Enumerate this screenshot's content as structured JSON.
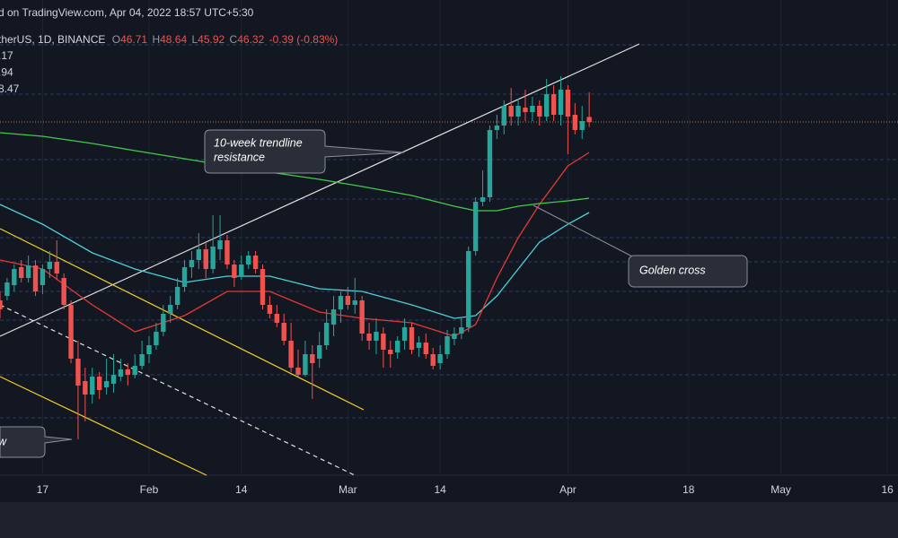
{
  "chart_data": {
    "type": "candlestick",
    "header": "d on TradingView.com, Apr 04, 2022 18:57 UTC+5:30",
    "symbol": "therUS, 1D, BINANCE",
    "ohlc_letters": [
      "O",
      "H",
      "L",
      "C"
    ],
    "change": "-0.39 (-0.83%)",
    "up_color": "#26a69a",
    "down_color": "#ef5350",
    "xlim": [
      0,
      126.5
    ],
    "ylim": [
      18.74,
      55.84
    ],
    "xticks": [
      {
        "value": 6,
        "label": "17"
      },
      {
        "value": 21,
        "label": "Feb"
      },
      {
        "value": 34,
        "label": "14"
      },
      {
        "value": 49,
        "label": "Mar"
      },
      {
        "value": 62,
        "label": "14"
      },
      {
        "value": 80,
        "label": "Apr"
      },
      {
        "value": 97,
        "label": "18"
      },
      {
        "value": 110,
        "label": "May"
      },
      {
        "value": 125,
        "label": "16"
      }
    ],
    "x": [
      0,
      1,
      2,
      3,
      4,
      5,
      6,
      7,
      8,
      9,
      10,
      11,
      12,
      13,
      14,
      15,
      16,
      17,
      18,
      19,
      20,
      21,
      22,
      23,
      24,
      25,
      26,
      27,
      28,
      29,
      30,
      31,
      32,
      33,
      34,
      35,
      36,
      37,
      38,
      39,
      40,
      41,
      42,
      43,
      44,
      45,
      46,
      47,
      48,
      49,
      50,
      51,
      52,
      53,
      54,
      55,
      56,
      57,
      58,
      59,
      60,
      61,
      62,
      63,
      64,
      65,
      66,
      67,
      68,
      69,
      70,
      71,
      72,
      73,
      74,
      75,
      76,
      77,
      78,
      79,
      80,
      81,
      82,
      83
    ],
    "candles": [
      [
        32.39,
        33.09,
        30.99,
        31.69
      ],
      [
        32.74,
        34.14,
        32.39,
        33.79
      ],
      [
        33.58,
        35.19,
        33.09,
        34.84
      ],
      [
        34.98,
        35.54,
        33.79,
        34.14
      ],
      [
        34.14,
        35.89,
        33.79,
        35.12
      ],
      [
        35.12,
        35.54,
        32.74,
        33.09
      ],
      [
        33.58,
        35.19,
        32.88,
        34.84
      ],
      [
        34.84,
        36.24,
        34.14,
        35.4
      ],
      [
        35.4,
        37.08,
        34.0,
        34.49
      ],
      [
        34.14,
        34.49,
        31.69,
        32.04
      ],
      [
        32.04,
        32.39,
        27.49,
        27.84
      ],
      [
        27.84,
        29.24,
        21.54,
        25.74
      ],
      [
        26.09,
        27.14,
        22.94,
        25.04
      ],
      [
        25.04,
        27.14,
        24.34,
        26.44
      ],
      [
        26.44,
        26.79,
        24.69,
        25.39
      ],
      [
        25.6,
        27.84,
        25.04,
        26.09
      ],
      [
        25.88,
        28.19,
        25.18,
        26.58
      ],
      [
        26.44,
        27.84,
        26.09,
        27.0
      ],
      [
        27.0,
        27.49,
        25.74,
        26.58
      ],
      [
        26.58,
        28.19,
        26.3,
        27.28
      ],
      [
        27.28,
        29.24,
        27.0,
        28.19
      ],
      [
        28.19,
        29.59,
        27.49,
        28.89
      ],
      [
        28.89,
        30.64,
        28.54,
        29.94
      ],
      [
        29.94,
        32.04,
        29.59,
        31.34
      ],
      [
        31.34,
        32.74,
        30.64,
        32.04
      ],
      [
        32.04,
        34.14,
        31.69,
        33.44
      ],
      [
        33.44,
        35.54,
        33.09,
        34.98
      ],
      [
        34.98,
        36.24,
        34.14,
        35.54
      ],
      [
        35.54,
        37.64,
        34.84,
        36.38
      ],
      [
        36.38,
        36.94,
        34.14,
        34.84
      ],
      [
        34.84,
        39.04,
        34.49,
        36.59
      ],
      [
        36.38,
        39.04,
        35.54,
        37.08
      ],
      [
        37.08,
        37.5,
        34.84,
        35.19
      ],
      [
        35.19,
        35.54,
        33.44,
        34.14
      ],
      [
        34.28,
        35.89,
        34.0,
        35.19
      ],
      [
        35.19,
        36.24,
        34.84,
        35.89
      ],
      [
        35.89,
        36.24,
        34.49,
        34.84
      ],
      [
        34.84,
        35.19,
        31.69,
        32.04
      ],
      [
        32.04,
        32.74,
        30.99,
        31.34
      ],
      [
        31.34,
        32.04,
        30.29,
        30.64
      ],
      [
        30.64,
        31.34,
        28.89,
        29.24
      ],
      [
        29.24,
        30.64,
        26.79,
        27.14
      ],
      [
        27.14,
        28.54,
        26.44,
        26.58
      ],
      [
        26.58,
        29.24,
        26.44,
        28.19
      ],
      [
        28.19,
        28.89,
        24.69,
        27.49
      ],
      [
        27.84,
        29.94,
        27.14,
        28.89
      ],
      [
        28.89,
        31.69,
        28.54,
        30.64
      ],
      [
        30.5,
        32.74,
        29.59,
        31.69
      ],
      [
        31.69,
        33.09,
        30.64,
        32.74
      ],
      [
        32.74,
        33.44,
        31.69,
        32.04
      ],
      [
        32.04,
        34.14,
        31.34,
        32.39
      ],
      [
        32.39,
        32.74,
        29.24,
        29.8
      ],
      [
        29.8,
        30.64,
        28.54,
        29.24
      ],
      [
        29.24,
        30.99,
        28.19,
        29.94
      ],
      [
        29.8,
        30.29,
        27.14,
        28.54
      ],
      [
        28.54,
        29.24,
        27.14,
        28.19
      ],
      [
        28.33,
        29.59,
        27.84,
        29.24
      ],
      [
        29.24,
        30.99,
        28.54,
        30.29
      ],
      [
        30.29,
        30.64,
        28.19,
        28.54
      ],
      [
        28.68,
        29.59,
        27.98,
        29.1
      ],
      [
        29.1,
        29.8,
        27.84,
        28.19
      ],
      [
        28.19,
        28.68,
        27.0,
        27.28
      ],
      [
        27.49,
        28.89,
        27.0,
        28.19
      ],
      [
        28.19,
        30.08,
        27.84,
        29.59
      ],
      [
        29.38,
        30.29,
        28.89,
        29.8
      ],
      [
        29.8,
        30.99,
        29.38,
        30.29
      ],
      [
        30.29,
        36.59,
        29.94,
        36.24
      ],
      [
        36.24,
        40.44,
        35.89,
        40.09
      ],
      [
        40.09,
        42.54,
        39.74,
        40.44
      ],
      [
        40.44,
        46.04,
        40.09,
        45.69
      ],
      [
        45.69,
        46.88,
        44.99,
        46.04
      ],
      [
        46.04,
        48.0,
        45.34,
        47.58
      ],
      [
        47.58,
        48.98,
        46.04,
        46.74
      ],
      [
        46.74,
        48.14,
        46.04,
        47.58
      ],
      [
        47.44,
        48.84,
        46.39,
        47.09
      ],
      [
        47.09,
        48.28,
        46.39,
        47.58
      ],
      [
        47.58,
        48.0,
        46.04,
        46.74
      ],
      [
        46.74,
        49.68,
        46.39,
        48.49
      ],
      [
        48.49,
        49.19,
        46.39,
        46.88
      ],
      [
        46.88,
        49.89,
        46.04,
        48.84
      ],
      [
        48.84,
        49.19,
        43.8,
        46.74
      ],
      [
        46.88,
        47.79,
        45.34,
        45.69
      ],
      [
        45.69,
        47.58,
        44.99,
        46.39
      ],
      [
        46.71,
        48.64,
        45.92,
        46.32
      ]
    ],
    "series": [
      {
        "label": ".17",
        "color": "#4dd0d6",
        "x": [
          0,
          6,
          13,
          19,
          26,
          32,
          38,
          45,
          51,
          58,
          64,
          67,
          70,
          73,
          76,
          80,
          83
        ],
        "values": [
          39.88,
          38.34,
          36.1,
          34.84,
          33.79,
          34.28,
          34.28,
          33.3,
          33.09,
          32.04,
          30.99,
          31.2,
          32.74,
          34.84,
          36.94,
          38.34,
          39.25
        ]
      },
      {
        "label": ".94",
        "color": "#e53935",
        "x": [
          0,
          6,
          13,
          19,
          26,
          32,
          38,
          45,
          51,
          58,
          64,
          67,
          70,
          73,
          76,
          80,
          83
        ],
        "values": [
          35.54,
          34.84,
          32.04,
          29.94,
          31.2,
          33.09,
          33.09,
          31.48,
          30.99,
          30.64,
          29.59,
          30.5,
          34.14,
          37.29,
          39.88,
          42.89,
          43.94
        ]
      },
      {
        "label": "8.47",
        "color": "#43c94a",
        "x": [
          0,
          6,
          13,
          19,
          26,
          32,
          38,
          45,
          51,
          58,
          64,
          67,
          70,
          73,
          76,
          80,
          83
        ],
        "values": [
          45.48,
          45.2,
          44.64,
          44.08,
          43.45,
          42.89,
          42.4,
          41.84,
          41.28,
          40.58,
          39.74,
          39.39,
          39.39,
          39.74,
          39.95,
          40.16,
          40.37
        ]
      }
    ],
    "annotations": [
      "10-week trendline",
      "resistance",
      "Golden cross",
      "w"
    ]
  }
}
